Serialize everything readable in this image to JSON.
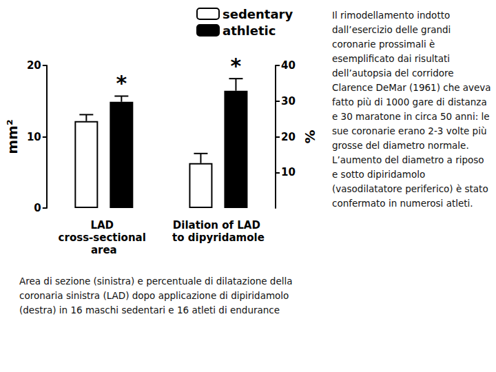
{
  "chart_data": {
    "type": "bar",
    "categories": [
      "LAD cross-sectional area",
      "Dilation of LAD to dipyridamole"
    ],
    "series": [
      {
        "name": "sedentary",
        "color": "#ffffff",
        "values": [
          12.2,
          null
        ],
        "errors": [
          0.9,
          null
        ]
      },
      {
        "name": "athletic",
        "color": "#000000",
        "values": [
          14.9,
          null
        ],
        "errors": [
          0.8,
          null
        ]
      },
      {
        "name": "sedentary",
        "color": "#ffffff",
        "axis": "y2",
        "values": [
          null,
          12.6
        ],
        "errors": [
          null,
          2.7
        ]
      },
      {
        "name": "athletic",
        "color": "#000000",
        "axis": "y2",
        "values": [
          null,
          32.9
        ],
        "errors": [
          null,
          3.4
        ]
      }
    ],
    "ylabel": "mm²",
    "y2label": "%",
    "ylim": [
      0,
      20
    ],
    "yticks": [
      0,
      10,
      20
    ],
    "y2lim": [
      0,
      40
    ],
    "y2ticks": [
      10,
      20,
      30,
      40
    ],
    "grid": false,
    "legend": "top",
    "annotations": [
      {
        "text": "*",
        "category": "LAD cross-sectional area",
        "series": 1
      },
      {
        "text": "*",
        "category": "Dilation of LAD to dipyridamole",
        "series": 3
      }
    ],
    "caption": "Area di sezione (sinistra) e percentuale di dilatazione della coronaria sinistra (LAD) dopo applicazione di dipiridamolo (destra) in 16 maschi sedentari e 16 atleti di endurance",
    "side_text": [
      "Il rimodellamento indotto dall’esercizio delle grandi coronarie prossimali è esemplificato dai risultati dell’autopsia del corridore Clarence DeMar (1961) che aveva fatto più di 1000 gare di distanza e 30 maratone in circa 50 anni: le sue coronarie erano 2-3 volte più grosse del diametro normale.",
      "L’aumento del diametro a riposo e sotto dipiridamolo (vasodilatatore periferico) è stato confermato in numerosi atleti."
    ]
  }
}
